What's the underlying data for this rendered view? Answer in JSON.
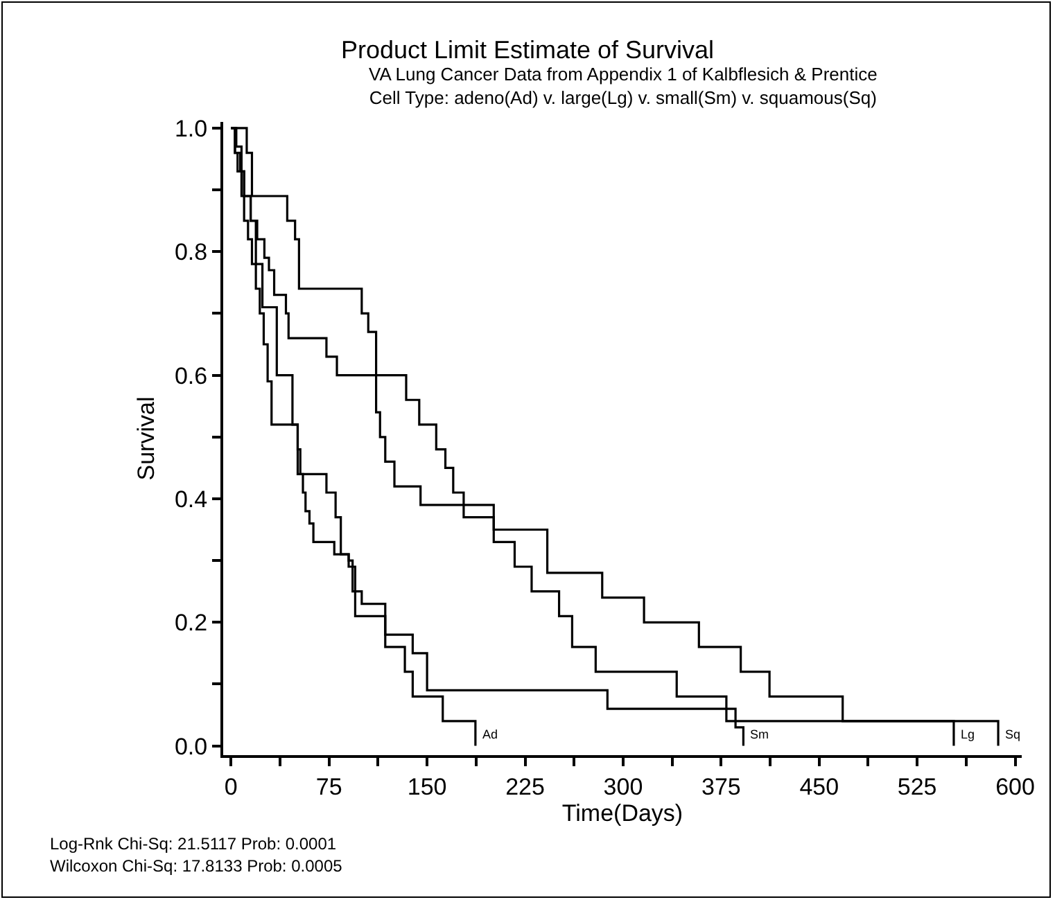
{
  "chart_data": {
    "type": "step",
    "title": "Product Limit Estimate of Survival",
    "subtitle": "VA Lung Cancer Data from Appendix 1 of Kalbflesich & Prentice\nCell Type: adeno(Ad) v. large(Lg) v. small(Sm) v. squamous(Sq)",
    "xlabel": "Time(Days)",
    "ylabel": "Survival",
    "xlim": [
      -6,
      605
    ],
    "ylim": [
      -0.015,
      1.01
    ],
    "xticks": [
      0,
      {
        "value": 37.5,
        "label": null
      },
      75,
      {
        "value": 112.5,
        "label": null
      },
      150,
      {
        "value": 187.5,
        "label": null
      },
      225,
      {
        "value": 262.5,
        "label": null
      },
      300,
      {
        "value": 337.5,
        "label": null
      },
      375,
      {
        "value": 412.5,
        "label": null
      },
      450,
      {
        "value": 487.5,
        "label": null
      },
      525,
      {
        "value": 562.5,
        "label": null
      },
      600
    ],
    "yticks": [
      {
        "value": 0,
        "label": "0.0"
      },
      {
        "value": 0.1,
        "label": null
      },
      0.2,
      {
        "value": 0.3,
        "label": null
      },
      0.4,
      {
        "value": 0.5,
        "label": null
      },
      0.6,
      {
        "value": 0.7,
        "label": null
      },
      0.8,
      {
        "value": 0.9,
        "label": null
      },
      {
        "value": 1,
        "label": "1.0"
      }
    ],
    "grid": false,
    "legend": false,
    "marker": "none",
    "line_style": "solid",
    "series": [
      {
        "name": "Sq",
        "color": "#000000",
        "x": [
          0,
          4,
          8,
          10,
          15,
          20,
          25.5,
          29,
          33,
          42,
          44,
          73,
          81,
          111,
          114,
          118,
          125,
          145,
          201,
          242,
          284,
          316,
          358,
          390,
          412,
          468,
          587
        ],
        "values": [
          1,
          0.97,
          0.93,
          0.89,
          0.85,
          0.82,
          0.79,
          0.77,
          0.73,
          0.7,
          0.66,
          0.63,
          0.6,
          0.54,
          0.5,
          0.46,
          0.42,
          0.39,
          0.35,
          0.28,
          0.24,
          0.2,
          0.16,
          0.12,
          0.08,
          0.04,
          0
        ]
      },
      {
        "name": "Lg",
        "color": "#000000",
        "x": [
          0,
          12,
          16,
          43,
          49,
          52,
          100,
          105,
          111,
          134,
          144,
          157,
          164,
          170,
          178,
          201,
          217,
          230,
          251,
          261,
          279,
          341,
          379,
          553
        ],
        "values": [
          1,
          0.96,
          0.89,
          0.85,
          0.82,
          0.74,
          0.7,
          0.67,
          0.6,
          0.56,
          0.52,
          0.48,
          0.45,
          0.41,
          0.37,
          0.33,
          0.29,
          0.25,
          0.21,
          0.16,
          0.12,
          0.08,
          0.04,
          0
        ]
      },
      {
        "name": "Sm",
        "color": "#000000",
        "x": [
          0,
          3,
          5,
          8,
          10,
          13,
          16,
          19,
          22,
          25,
          28,
          31,
          51,
          53,
          55,
          57,
          60,
          63,
          79,
          90,
          93,
          100,
          118,
          139,
          150,
          288,
          386,
          392
        ],
        "values": [
          1,
          0.96,
          0.93,
          0.89,
          0.85,
          0.82,
          0.78,
          0.74,
          0.7,
          0.65,
          0.59,
          0.52,
          0.48,
          0.44,
          0.41,
          0.38,
          0.36,
          0.33,
          0.31,
          0.3,
          0.25,
          0.23,
          0.18,
          0.15,
          0.09,
          0.06,
          0.03,
          0
        ]
      },
      {
        "name": "Ad",
        "color": "#000000",
        "x": [
          0,
          3,
          7,
          10,
          15,
          19,
          24,
          35,
          47,
          51,
          73,
          80,
          84,
          90,
          95,
          118,
          133,
          139,
          162,
          187
        ],
        "values": [
          1,
          0.96,
          0.93,
          0.89,
          0.85,
          0.78,
          0.71,
          0.6,
          0.52,
          0.44,
          0.41,
          0.37,
          0.31,
          0.29,
          0.21,
          0.16,
          0.12,
          0.08,
          0.04,
          0
        ]
      }
    ],
    "annotations": [
      "Log-Rnk Chi-Sq: 21.5117 Prob: 0.0001",
      "Wilcoxon Chi-Sq: 17.8133 Prob: 0.0005"
    ]
  }
}
